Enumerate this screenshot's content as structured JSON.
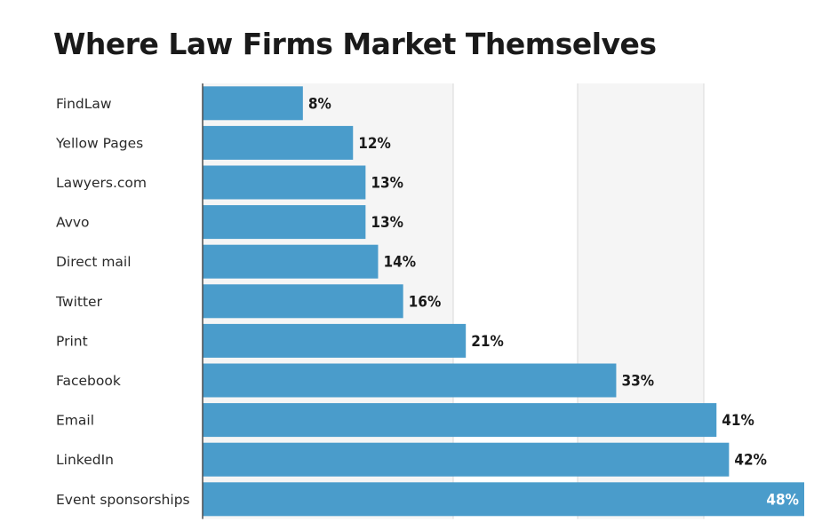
{
  "chart_data": {
    "type": "bar",
    "orientation": "horizontal",
    "title": "Where Law Firms Market Themselves",
    "categories": [
      "FindLaw",
      "Yellow Pages",
      "Lawyers.com",
      "Avvo",
      "Direct mail",
      "Twitter",
      "Print",
      "Facebook",
      "Email",
      "LinkedIn",
      "Event sponsorships"
    ],
    "values": [
      8,
      12,
      13,
      13,
      14,
      16,
      21,
      33,
      41,
      42,
      48
    ],
    "value_labels": [
      "8%",
      "12%",
      "13%",
      "13%",
      "14%",
      "16%",
      "21%",
      "33%",
      "41%",
      "42%",
      "48%"
    ],
    "unit": "%",
    "xlim": [
      0,
      48
    ],
    "grid": true,
    "colors": {
      "bar": "#4a9ccb",
      "grid": "#d9d9d9",
      "band": "#f5f5f5",
      "axis": "#4d4d4d"
    }
  }
}
